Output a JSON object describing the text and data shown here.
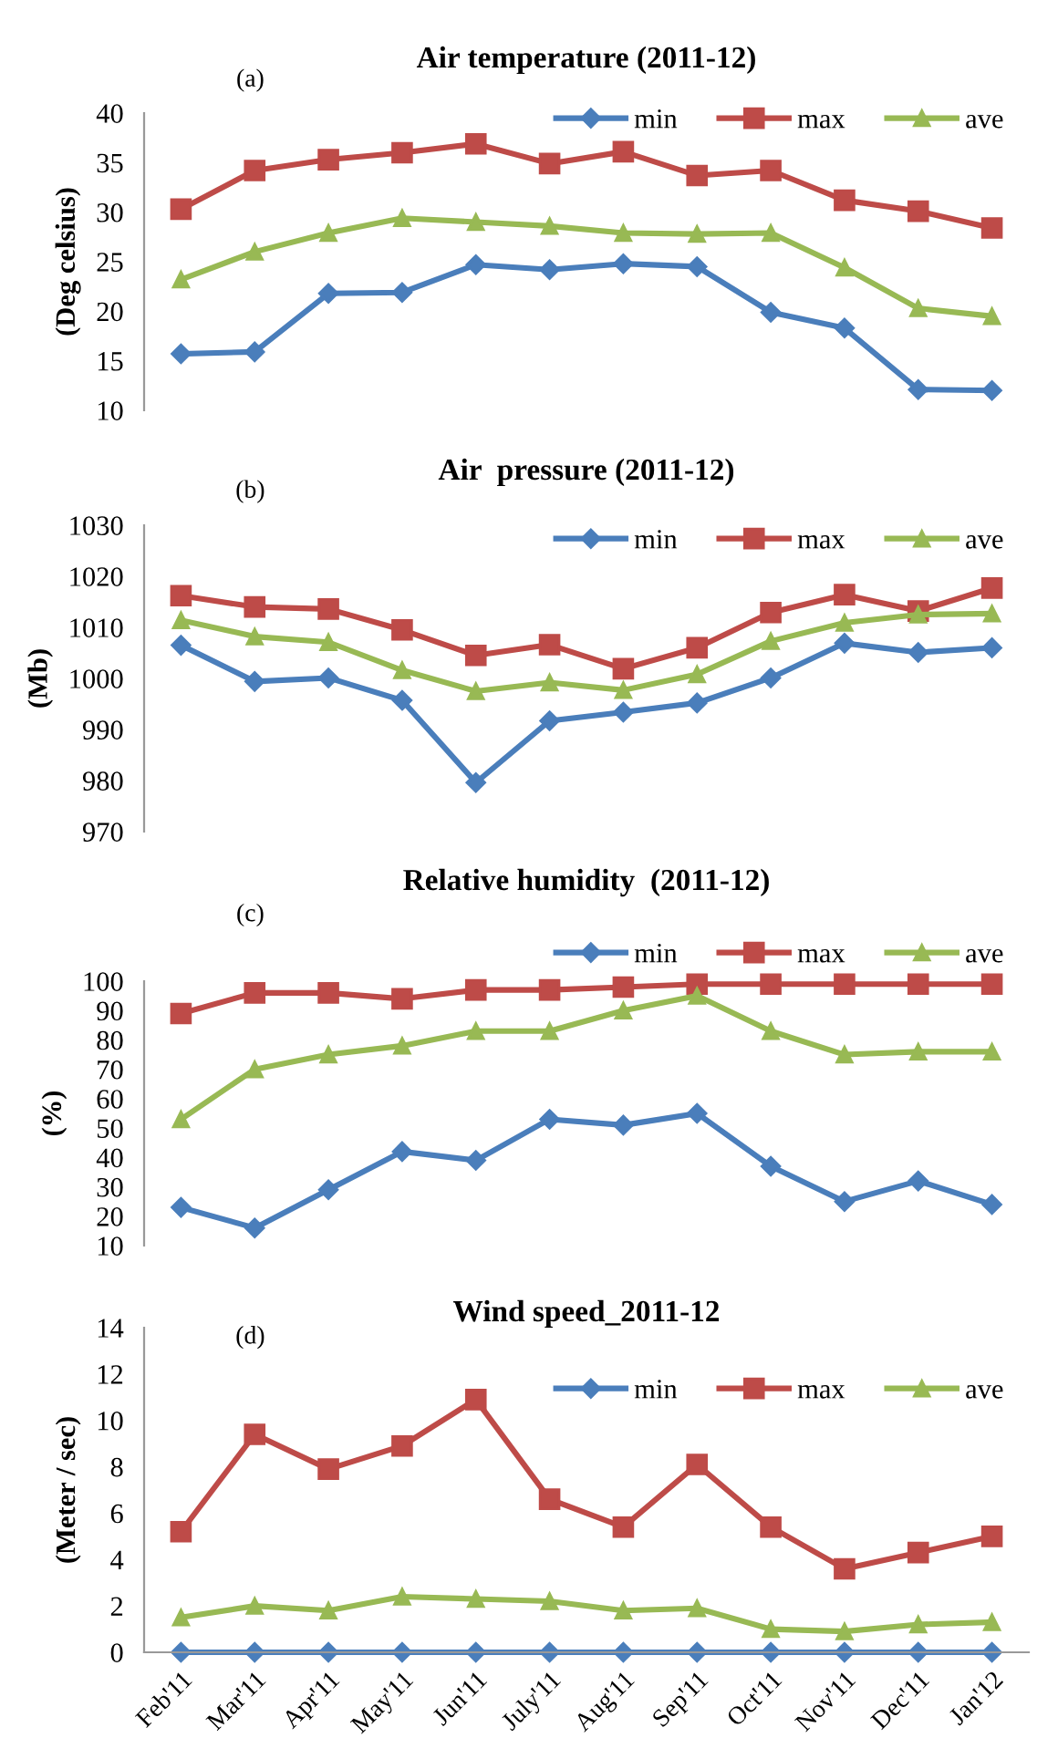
{
  "chart_data": [
    {
      "type": "line",
      "title": "Air temperature (2011-12)",
      "ylabel": "(Deg celsius)",
      "annotations": [
        "(a)"
      ],
      "categories": [
        null,
        null,
        null,
        null,
        null,
        null,
        null,
        null,
        null,
        null,
        null,
        null
      ],
      "tick_labels": "y",
      "ylim": [
        10,
        40
      ],
      "yticks": [
        10,
        15,
        20,
        25,
        30,
        35,
        40
      ],
      "grid": false,
      "legend": "top right",
      "line_style": "solid",
      "series": [
        {
          "name": "min",
          "color": "#4a7ebb",
          "marker": "diamond",
          "values": [
            15.7,
            15.9,
            21.8,
            21.9,
            24.7,
            24.2,
            24.8,
            24.5,
            19.9,
            18.3,
            12.1,
            12.0
          ]
        },
        {
          "name": "max",
          "color": "#be4b48",
          "marker": "square",
          "values": [
            30.3,
            34.2,
            35.3,
            36.0,
            36.9,
            34.9,
            36.1,
            33.7,
            34.2,
            31.2,
            30.1,
            28.4
          ]
        },
        {
          "name": "ave",
          "color": "#98b954",
          "marker": "triangle",
          "values": [
            23.2,
            26.0,
            27.9,
            29.4,
            29.0,
            28.6,
            27.9,
            27.8,
            27.9,
            24.4,
            20.3,
            19.5
          ]
        }
      ]
    },
    {
      "type": "line",
      "title": "Air  pressure (2011-12)",
      "ylabel": "(Mb)",
      "annotations": [
        "(b)"
      ],
      "categories": [
        null,
        null,
        null,
        null,
        null,
        null,
        null,
        null,
        null,
        null,
        null,
        null
      ],
      "tick_labels": "y",
      "ylim": [
        970,
        1030
      ],
      "yticks": [
        970,
        980,
        990,
        1000,
        1010,
        1020,
        1030
      ],
      "grid": false,
      "legend": "top right",
      "line_style": "solid",
      "series": [
        {
          "name": "min",
          "color": "#4a7ebb",
          "marker": "diamond",
          "values": [
            1006.5,
            999.4,
            1000.1,
            995.7,
            979.6,
            991.7,
            993.4,
            995.2,
            1000.1,
            1006.9,
            1005.1,
            1006.0
          ]
        },
        {
          "name": "max",
          "color": "#be4b48",
          "marker": "square",
          "values": [
            1016.2,
            1014.0,
            1013.6,
            1009.5,
            1004.5,
            1006.6,
            1001.9,
            1006.0,
            1012.9,
            1016.4,
            1013.2,
            1017.7
          ]
        },
        {
          "name": "ave",
          "color": "#98b954",
          "marker": "triangle",
          "values": [
            1011.4,
            1008.2,
            1007.1,
            1001.6,
            997.5,
            999.2,
            997.7,
            1000.8,
            1007.3,
            1010.9,
            1012.5,
            1012.7
          ]
        }
      ]
    },
    {
      "type": "line",
      "title": "Relative humidity  (2011-12)",
      "ylabel": "(%)",
      "annotations": [
        "(c)"
      ],
      "categories": [
        null,
        null,
        null,
        null,
        null,
        null,
        null,
        null,
        null,
        null,
        null,
        null
      ],
      "tick_labels": "y",
      "ylim": [
        10,
        100
      ],
      "yticks": [
        10,
        20,
        30,
        40,
        50,
        60,
        70,
        80,
        90,
        100
      ],
      "grid": false,
      "legend": "top right",
      "line_style": "solid",
      "series": [
        {
          "name": "min",
          "color": "#4a7ebb",
          "marker": "diamond",
          "values": [
            23,
            16,
            29,
            42,
            39,
            53,
            51,
            55,
            37,
            25,
            32,
            24
          ]
        },
        {
          "name": "max",
          "color": "#be4b48",
          "marker": "square",
          "values": [
            89,
            96,
            96,
            94,
            97,
            97,
            98,
            99,
            99,
            99,
            99,
            99
          ]
        },
        {
          "name": "ave",
          "color": "#98b954",
          "marker": "triangle",
          "values": [
            53,
            70,
            75,
            78,
            83,
            83,
            90,
            95,
            83,
            75,
            76,
            76
          ]
        }
      ]
    },
    {
      "type": "line",
      "title": "Wind speed_2011-12",
      "ylabel": "(Meter / sec)",
      "annotations": [
        "(d)"
      ],
      "categories": [
        "Feb'11",
        "Mar'11",
        "Apr'11",
        "May'11",
        "Jun'11",
        "July'11",
        "Aug'11",
        "Sep'11",
        "Oct'11",
        "Nov'11",
        "Dec'11",
        "Jan'12"
      ],
      "ylim": [
        0,
        14
      ],
      "yticks": [
        0,
        2,
        4,
        6,
        8,
        10,
        12,
        14
      ],
      "grid": false,
      "legend": "top right",
      "line_style": "solid",
      "series": [
        {
          "name": "min",
          "color": "#4a7ebb",
          "marker": "diamond",
          "values": [
            0,
            0,
            0,
            0,
            0,
            0,
            0,
            0,
            0,
            0,
            0,
            0
          ]
        },
        {
          "name": "max",
          "color": "#be4b48",
          "marker": "square",
          "values": [
            5.2,
            9.4,
            7.9,
            8.9,
            10.9,
            6.6,
            5.4,
            8.1,
            5.4,
            3.6,
            4.3,
            5.0
          ]
        },
        {
          "name": "ave",
          "color": "#98b954",
          "marker": "triangle",
          "values": [
            1.5,
            2.0,
            1.8,
            2.4,
            2.3,
            2.2,
            1.8,
            1.9,
            1.0,
            0.9,
            1.2,
            1.3
          ]
        }
      ]
    }
  ]
}
